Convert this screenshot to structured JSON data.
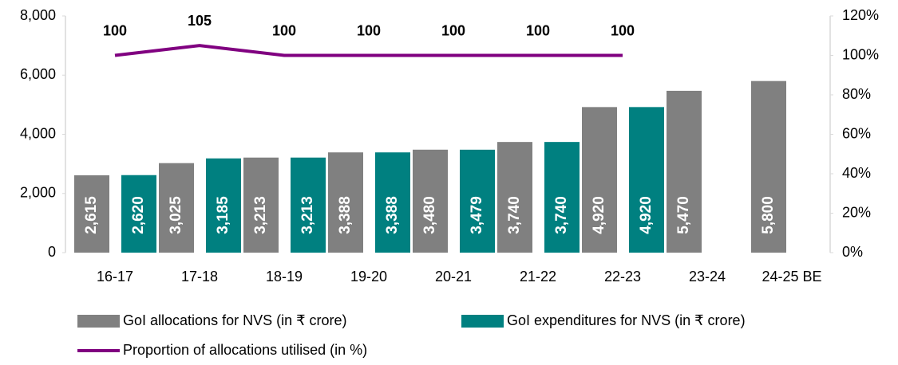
{
  "chart_data": {
    "type": "bar_line",
    "categories": [
      "16-17",
      "17-18",
      "18-19",
      "19-20",
      "20-21",
      "21-22",
      "22-23",
      "23-24",
      "24-25 BE"
    ],
    "series": [
      {
        "name": "GoI allocations for NVS (in ₹ crore)",
        "color": "#808080",
        "type": "bar",
        "values": [
          2615,
          3025,
          3213,
          3388,
          3480,
          3740,
          4920,
          5470,
          5800
        ],
        "value_labels": [
          "2,615",
          "3,025",
          "3,213",
          "3,388",
          "3,480",
          "3,740",
          "4,920",
          "5,470",
          "5,800"
        ]
      },
      {
        "name": "GoI expenditures for NVS (in ₹ crore)",
        "color": "#008080",
        "type": "bar",
        "values": [
          2620,
          3185,
          3213,
          3388,
          3479,
          3740,
          4920,
          null,
          null
        ],
        "value_labels": [
          "2,620",
          "3,185",
          "3,213",
          "3,388",
          "3,479",
          "3,740",
          "4,920",
          null,
          null
        ]
      },
      {
        "name": "Proportion of allocations utilised (in %)",
        "color": "#800080",
        "type": "line",
        "axis": "y2",
        "values": [
          100,
          105,
          100,
          100,
          100,
          100,
          100,
          null,
          null
        ]
      }
    ],
    "ylim": [
      0,
      8000
    ],
    "yticks": [
      0,
      {
        "value": 2000,
        "label": "2,000"
      },
      {
        "value": 4000,
        "label": "4,000"
      },
      {
        "value": 6000,
        "label": "6,000"
      },
      {
        "value": 8000,
        "label": "8,000"
      }
    ],
    "y2lim": [
      0,
      120
    ],
    "y2ticks": [
      {
        "value": 0,
        "label": "0%"
      },
      {
        "value": 20,
        "label": "20%"
      },
      {
        "value": 40,
        "label": "40%"
      },
      {
        "value": 60,
        "label": "60%"
      },
      {
        "value": 80,
        "label": "80%"
      },
      {
        "value": 100,
        "label": "100%"
      },
      {
        "value": 120,
        "label": "120%"
      }
    ],
    "legend": "bottom"
  }
}
